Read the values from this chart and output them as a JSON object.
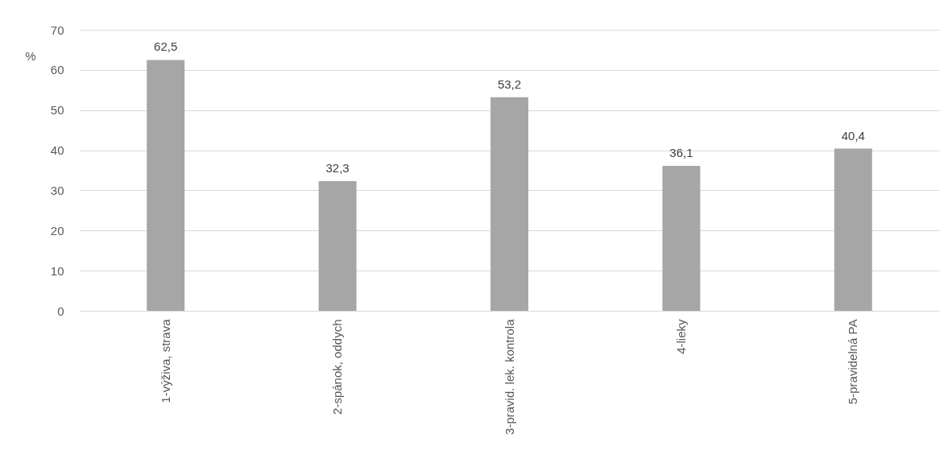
{
  "chart_data": {
    "type": "bar",
    "ylabel": "%",
    "categories": [
      "1-výživa, strava",
      "2-spánok, oddych",
      "3-pravid. lek. kontrola",
      "4-lieky",
      "5-pravidelná PA"
    ],
    "values": [
      62.5,
      32.3,
      53.2,
      36.1,
      40.4
    ],
    "value_labels": [
      "62,5",
      "32,3",
      "53,2",
      "36,1",
      "40,4"
    ],
    "color": "#a6a6a6",
    "ylim": [
      0,
      70
    ],
    "yticks": [
      0,
      10,
      20,
      30,
      40,
      50,
      60,
      70
    ],
    "grid": "y"
  }
}
